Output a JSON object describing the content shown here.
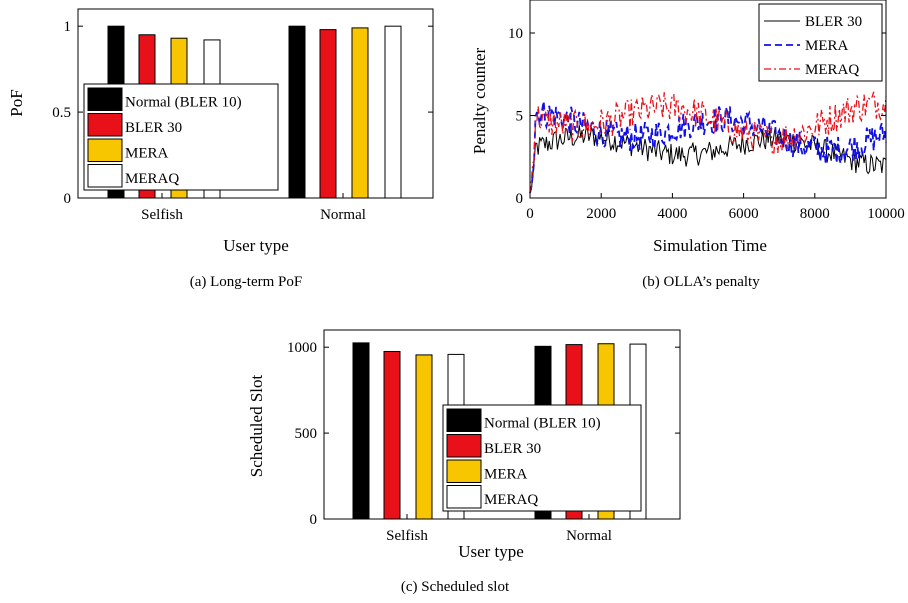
{
  "chart_data": [
    {
      "type": "bar",
      "caption": "(a) Long-term PoF",
      "categories": [
        "Selfish",
        "Normal"
      ],
      "series": [
        {
          "name": "Normal (BLER 10)",
          "color": "#000000",
          "values": [
            1.0,
            1.0
          ]
        },
        {
          "name": "BLER 30",
          "color": "#e8111a",
          "values": [
            0.95,
            0.98
          ]
        },
        {
          "name": "MERA",
          "color": "#f7c600",
          "values": [
            0.93,
            0.99
          ]
        },
        {
          "name": "MERAQ",
          "color": "#ffffff",
          "values": [
            0.92,
            1.0
          ]
        }
      ],
      "xlabel": "User type",
      "ylabel": "PoF",
      "ylim": [
        0,
        1.1
      ],
      "yticks": [
        "0",
        "0.5",
        "1"
      ],
      "legend": "bottom-left"
    },
    {
      "type": "line",
      "caption": "(b) OLLA’s penalty",
      "series": [
        {
          "name": "BLER 30",
          "color": "#000000",
          "style": "solid",
          "mean": 2.9,
          "amplitude": 0.9
        },
        {
          "name": "MERA",
          "color": "#1010e6",
          "style": "dashed",
          "mean": 4.1,
          "amplitude": 1.1
        },
        {
          "name": "MERAQ",
          "color": "#e8111a",
          "style": "dash-dot",
          "mean": 4.9,
          "amplitude": 1.2
        }
      ],
      "xlabel": "Simulation Time",
      "ylabel": "Penalty counter",
      "xlim": [
        0,
        10000
      ],
      "ylim": [
        0,
        12
      ],
      "xticks": [
        "0",
        "2000",
        "4000",
        "6000",
        "8000",
        "10000"
      ],
      "yticks": [
        "0",
        "5",
        "10"
      ],
      "legend": "top-right"
    },
    {
      "type": "bar",
      "caption": "(c) Scheduled slot",
      "categories": [
        "Selfish",
        "Normal"
      ],
      "series": [
        {
          "name": "Normal (BLER 10)",
          "color": "#000000",
          "values": [
            1025,
            1005
          ]
        },
        {
          "name": "BLER 30",
          "color": "#e8111a",
          "values": [
            975,
            1015
          ]
        },
        {
          "name": "MERA",
          "color": "#f7c600",
          "values": [
            955,
            1020
          ]
        },
        {
          "name": "MERAQ",
          "color": "#ffffff",
          "values": [
            958,
            1018
          ]
        }
      ],
      "xlabel": "User type",
      "ylabel": "Scheduled Slot",
      "ylim": [
        0,
        1100
      ],
      "yticks": [
        "0",
        "500",
        "1000"
      ],
      "legend": "bottom-right"
    }
  ]
}
